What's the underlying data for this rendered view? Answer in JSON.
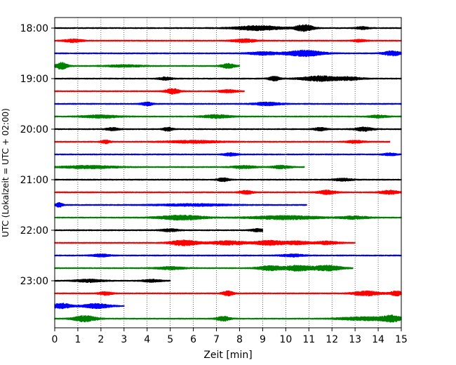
{
  "chart_data": {
    "type": "line",
    "title": "",
    "xlabel": "Zeit  [min]",
    "ylabel": "UTC (Lokalzeit = UTC + 02:00)",
    "xlim": [
      0,
      15
    ],
    "x_ticks": [
      0,
      1,
      2,
      3,
      4,
      5,
      6,
      7,
      8,
      9,
      10,
      11,
      12,
      13,
      14,
      15
    ],
    "y_ticks": [
      {
        "label": "18:00",
        "row": 0
      },
      {
        "label": "19:00",
        "row": 4
      },
      {
        "label": "20:00",
        "row": 8
      },
      {
        "label": "21:00",
        "row": 12
      },
      {
        "label": "22:00",
        "row": 16
      },
      {
        "label": "23:00",
        "row": 20
      }
    ],
    "grid": "vertical dotted",
    "color_cycle": [
      "#000000",
      "#ff0000",
      "#0000ff",
      "#008000"
    ],
    "traces": [
      {
        "start": "18:00",
        "color": "#000000",
        "bursts": [
          [
            8.8,
            1.0,
            3.0
          ],
          [
            10.8,
            0.4,
            4.5
          ],
          [
            13.3,
            0.3,
            1.6
          ]
        ]
      },
      {
        "start": "18:15",
        "color": "#ff0000",
        "bursts": [
          [
            0.8,
            0.4,
            2.0
          ],
          [
            8.2,
            0.5,
            2.2
          ],
          [
            13.2,
            0.3,
            1.4
          ]
        ]
      },
      {
        "start": "18:30",
        "color": "#0000ff",
        "bursts": [
          [
            9.0,
            0.6,
            2.0
          ],
          [
            10.8,
            0.8,
            4.0
          ],
          [
            14.6,
            0.4,
            3.0
          ]
        ]
      },
      {
        "start": "18:45",
        "color": "#008000",
        "bursts": [
          [
            0.3,
            0.25,
            4.5
          ],
          [
            3.0,
            0.8,
            1.3
          ],
          [
            7.5,
            0.3,
            3.0
          ]
        ],
        "end": 8.0
      },
      {
        "start": "19:00",
        "color": "#000000",
        "bursts": [
          [
            4.8,
            0.3,
            1.8
          ],
          [
            9.5,
            0.25,
            3.0
          ],
          [
            11.5,
            0.8,
            3.5
          ],
          [
            12.8,
            0.5,
            2.0
          ]
        ]
      },
      {
        "start": "19:15",
        "color": "#ff0000",
        "bursts": [
          [
            5.1,
            0.3,
            3.5
          ],
          [
            7.5,
            0.4,
            1.8
          ]
        ],
        "end": 8.2
      },
      {
        "start": "19:30",
        "color": "#0000ff",
        "bursts": [
          [
            4.0,
            0.25,
            2.2
          ],
          [
            9.2,
            0.6,
            2.0
          ]
        ]
      },
      {
        "start": "19:45",
        "color": "#008000",
        "bursts": [
          [
            2.0,
            0.8,
            1.8
          ],
          [
            7.0,
            0.6,
            2.2
          ],
          [
            14.0,
            0.4,
            1.6
          ]
        ]
      },
      {
        "start": "20:00",
        "color": "#000000",
        "bursts": [
          [
            2.5,
            0.3,
            1.8
          ],
          [
            4.9,
            0.2,
            2.5
          ],
          [
            11.5,
            0.3,
            2.0
          ],
          [
            13.4,
            0.4,
            2.4
          ]
        ]
      },
      {
        "start": "20:15",
        "color": "#ff0000",
        "bursts": [
          [
            2.2,
            0.2,
            2.2
          ],
          [
            6.0,
            1.2,
            1.6
          ],
          [
            13.0,
            0.4,
            1.6
          ]
        ],
        "end": 14.5
      },
      {
        "start": "20:30",
        "color": "#0000ff",
        "bursts": [
          [
            7.6,
            0.3,
            1.8
          ],
          [
            14.5,
            0.3,
            1.6
          ]
        ]
      },
      {
        "start": "20:45",
        "color": "#008000",
        "bursts": [
          [
            1.5,
            1.2,
            1.8
          ],
          [
            8.2,
            0.5,
            1.8
          ],
          [
            9.8,
            0.4,
            2.0
          ]
        ],
        "end": 10.8
      },
      {
        "start": "21:00",
        "color": "#000000",
        "bursts": [
          [
            7.3,
            0.25,
            2.2
          ],
          [
            12.5,
            0.4,
            1.6
          ]
        ]
      },
      {
        "start": "21:15",
        "color": "#ff0000",
        "bursts": [
          [
            8.3,
            0.3,
            2.2
          ],
          [
            11.8,
            0.4,
            2.5
          ],
          [
            14.5,
            0.4,
            2.4
          ]
        ]
      },
      {
        "start": "21:30",
        "color": "#0000ff",
        "bursts": [
          [
            0.2,
            0.15,
            3.0
          ],
          [
            6.0,
            1.5,
            1.4
          ]
        ],
        "end": 10.9
      },
      {
        "start": "21:45",
        "color": "#008000",
        "bursts": [
          [
            5.5,
            1.0,
            3.0
          ],
          [
            10.0,
            1.5,
            2.4
          ],
          [
            13.0,
            0.6,
            1.8
          ]
        ]
      },
      {
        "start": "22:00",
        "color": "#000000",
        "bursts": [
          [
            5.0,
            0.4,
            1.6
          ],
          [
            8.8,
            0.3,
            1.8
          ]
        ],
        "end": 9.0
      },
      {
        "start": "22:15",
        "color": "#ff0000",
        "bursts": [
          [
            5.6,
            0.6,
            3.5
          ],
          [
            7.5,
            0.8,
            2.5
          ],
          [
            9.3,
            0.6,
            3.0
          ],
          [
            10.5,
            0.6,
            2.2
          ],
          [
            11.8,
            0.5,
            2.0
          ]
        ],
        "end": 13.0
      },
      {
        "start": "22:30",
        "color": "#0000ff",
        "bursts": [
          [
            2.0,
            0.4,
            1.6
          ],
          [
            10.3,
            0.5,
            1.6
          ]
        ]
      },
      {
        "start": "22:45",
        "color": "#008000",
        "bursts": [
          [
            5.0,
            0.6,
            1.8
          ],
          [
            9.3,
            0.5,
            3.0
          ],
          [
            10.5,
            0.6,
            3.6
          ],
          [
            11.8,
            0.6,
            3.5
          ]
        ],
        "end": 12.9
      },
      {
        "start": "23:00",
        "color": "#000000",
        "bursts": [
          [
            1.5,
            0.6,
            1.8
          ],
          [
            4.2,
            0.4,
            1.6
          ]
        ],
        "end": 5.0
      },
      {
        "start": "23:15",
        "color": "#ff0000",
        "bursts": [
          [
            2.2,
            0.3,
            2.0
          ],
          [
            7.5,
            0.25,
            3.0
          ],
          [
            13.5,
            0.6,
            3.0
          ],
          [
            14.8,
            0.3,
            3.0
          ]
        ]
      },
      {
        "start": "23:30",
        "color": "#0000ff",
        "bursts": [
          [
            0.3,
            0.4,
            3.5
          ],
          [
            1.8,
            0.6,
            3.0
          ]
        ],
        "end": 3.0
      },
      {
        "start": "23:45",
        "color": "#008000",
        "bursts": [
          [
            1.3,
            0.5,
            4.0
          ],
          [
            7.3,
            0.3,
            3.0
          ],
          [
            13.5,
            1.2,
            2.2
          ],
          [
            14.6,
            0.4,
            3.5
          ]
        ]
      }
    ]
  }
}
